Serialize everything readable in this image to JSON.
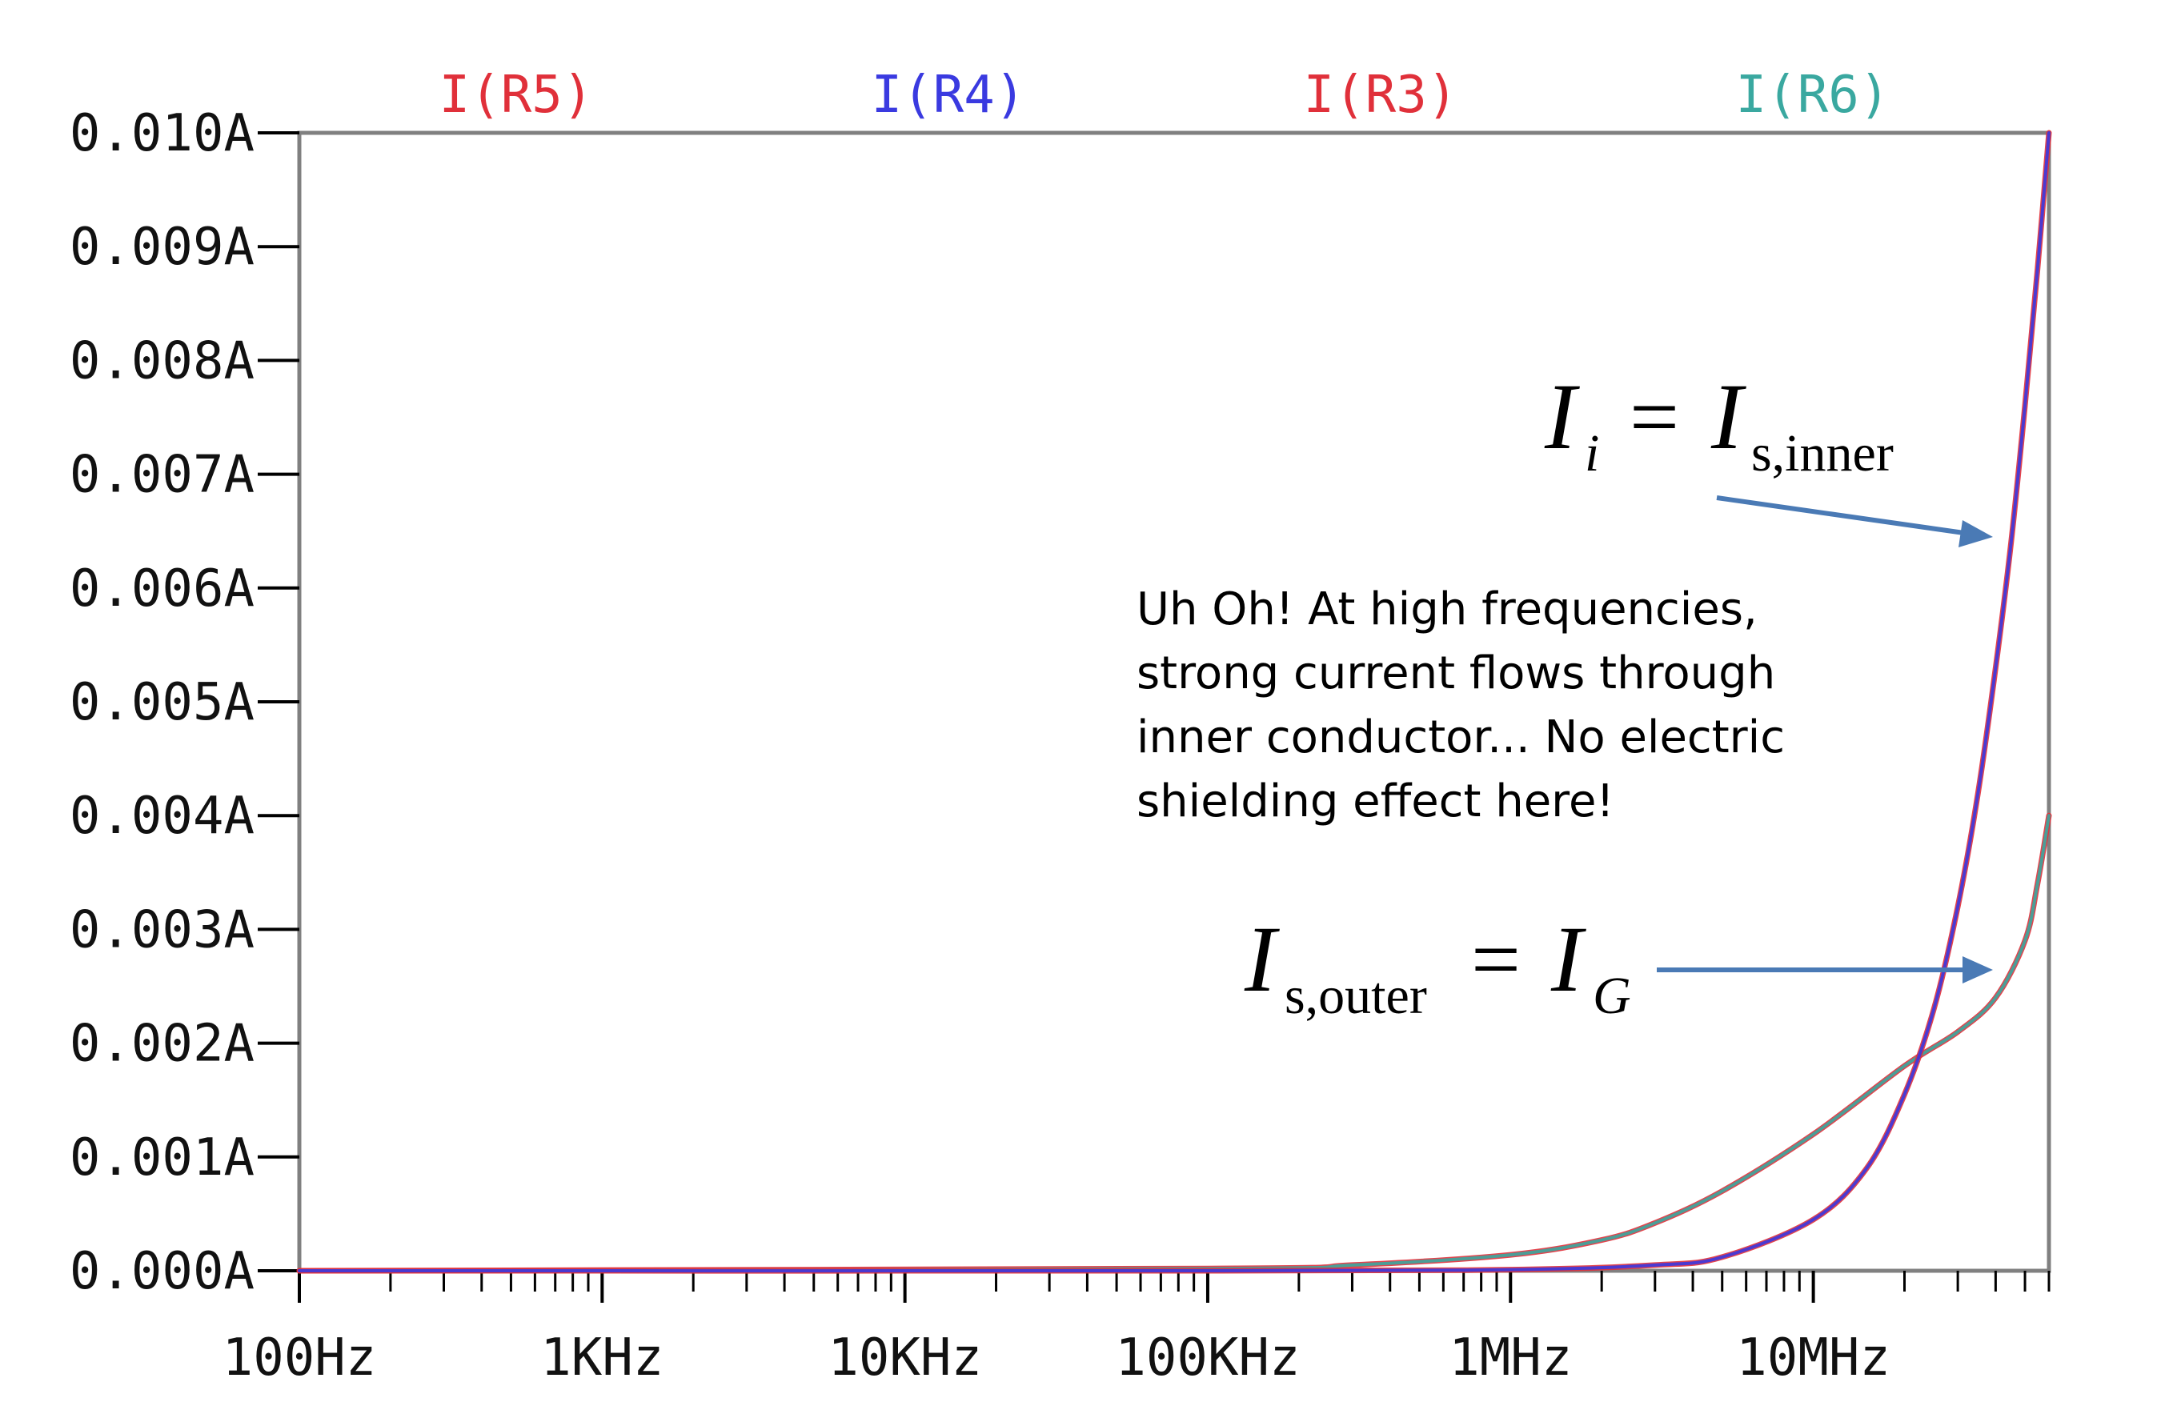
{
  "chart_data": {
    "type": "line",
    "x_scale": "log",
    "xlim": [
      100,
      60000000
    ],
    "ylim": [
      0,
      0.01
    ],
    "x_ticks": [
      {
        "value": 100,
        "label": "100Hz"
      },
      {
        "value": 1000,
        "label": "1KHz"
      },
      {
        "value": 10000,
        "label": "10KHz"
      },
      {
        "value": 100000,
        "label": "100KHz"
      },
      {
        "value": 1000000,
        "label": "1MHz"
      },
      {
        "value": 10000000,
        "label": "10MHz"
      }
    ],
    "y_ticks": [
      {
        "value": 0.0,
        "label": "0.000A"
      },
      {
        "value": 0.001,
        "label": "0.001A"
      },
      {
        "value": 0.002,
        "label": "0.002A"
      },
      {
        "value": 0.003,
        "label": "0.003A"
      },
      {
        "value": 0.004,
        "label": "0.004A"
      },
      {
        "value": 0.005,
        "label": "0.005A"
      },
      {
        "value": 0.006,
        "label": "0.006A"
      },
      {
        "value": 0.007,
        "label": "0.007A"
      },
      {
        "value": 0.008,
        "label": "0.008A"
      },
      {
        "value": 0.009,
        "label": "0.009A"
      },
      {
        "value": 0.01,
        "label": "0.010A"
      }
    ],
    "grid": false,
    "legend_position": "top",
    "series": [
      {
        "name": "I(R5)",
        "color": "#e0303a",
        "x": [
          100,
          100000,
          1000000,
          3000000,
          5000000,
          10000000,
          15000000,
          20000000,
          25000000,
          30000000,
          35000000,
          40000000,
          45000000,
          50000000,
          55000000,
          60000000
        ],
        "y": [
          0,
          0,
          1e-05,
          5e-05,
          0.00012,
          0.00045,
          0.0009,
          0.00155,
          0.0023,
          0.0032,
          0.0042,
          0.0053,
          0.0064,
          0.0076,
          0.0088,
          0.01
        ]
      },
      {
        "name": "I(R4)",
        "color": "#3a3ae0",
        "x": [
          100,
          100000,
          1000000,
          3000000,
          5000000,
          10000000,
          15000000,
          20000000,
          25000000,
          30000000,
          35000000,
          40000000,
          45000000,
          50000000,
          55000000,
          60000000
        ],
        "y": [
          0,
          0,
          1e-05,
          5e-05,
          0.00012,
          0.00045,
          0.0009,
          0.00155,
          0.0023,
          0.0032,
          0.0042,
          0.0053,
          0.0064,
          0.0076,
          0.0088,
          0.01
        ]
      },
      {
        "name": "I(R3)",
        "color": "#e0303a",
        "x": [
          100,
          100000,
          300000,
          1000000,
          2000000,
          3000000,
          5000000,
          10000000,
          20000000,
          30000000,
          40000000,
          50000000,
          55000000,
          60000000
        ],
        "y": [
          0,
          2e-05,
          5e-05,
          0.00014,
          0.00027,
          0.00042,
          0.0007,
          0.0012,
          0.0018,
          0.0021,
          0.0024,
          0.0029,
          0.0034,
          0.004
        ]
      },
      {
        "name": "I(R6)",
        "color": "#3aa8a0",
        "x": [
          100,
          100000,
          300000,
          1000000,
          2000000,
          3000000,
          5000000,
          10000000,
          20000000,
          30000000,
          40000000,
          50000000,
          55000000,
          60000000
        ],
        "y": [
          0,
          2e-05,
          5e-05,
          0.00014,
          0.00027,
          0.00042,
          0.0007,
          0.0012,
          0.0018,
          0.0021,
          0.0024,
          0.0029,
          0.0034,
          0.004
        ]
      }
    ],
    "annotations": {
      "note_lines": [
        "Uh Oh! At high frequencies,",
        "strong current flows through",
        "inner conductor... No electric",
        "shielding effect here!"
      ],
      "eq_inner": {
        "I1": "I",
        "sub1": "i",
        "eq": "=",
        "I2": "I",
        "sub2": "s,inner"
      },
      "eq_outer": {
        "I1": "I",
        "sub1": "s,outer",
        "eq": "=",
        "I2": "I",
        "sub2": "G"
      },
      "arrow_color": "#4a7ab5"
    }
  }
}
